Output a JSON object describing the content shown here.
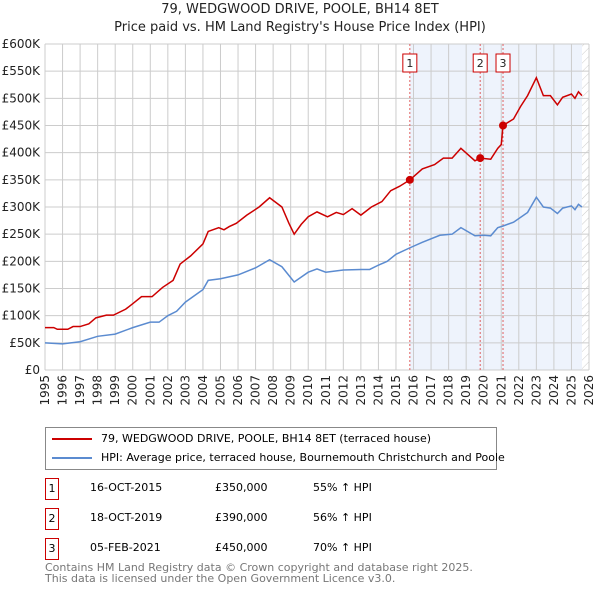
{
  "chart_data": {
    "type": "line",
    "title": "79, WEDGWOOD DRIVE, POOLE, BH14 8ET",
    "subtitle": "Price paid vs. HM Land Registry's House Price Index (HPI)",
    "xlim": [
      1995,
      2026
    ],
    "ylim": [
      0,
      600000
    ],
    "x_ticks": [
      "1995",
      "1996",
      "1997",
      "1998",
      "1999",
      "2000",
      "2001",
      "2002",
      "2003",
      "2004",
      "2005",
      "2006",
      "2007",
      "2008",
      "2009",
      "2010",
      "2011",
      "2012",
      "2013",
      "2014",
      "2015",
      "2016",
      "2017",
      "2018",
      "2019",
      "2020",
      "2021",
      "2022",
      "2023",
      "2024",
      "2025",
      "2026"
    ],
    "y_ticks": [
      "£0",
      "£50K",
      "£100K",
      "£150K",
      "£200K",
      "£250K",
      "£300K",
      "£350K",
      "£400K",
      "£450K",
      "£500K",
      "£550K",
      "£600K"
    ],
    "grid": true,
    "series": [
      {
        "name": "79, WEDGWOOD DRIVE, POOLE, BH14 8ET (terraced house)",
        "color": "#cc0000",
        "x": [
          1995,
          1995.5,
          1995.7,
          1996.3,
          1996.6,
          1997,
          1997.5,
          1997.9,
          1998.5,
          1998.9,
          1999.6,
          2000,
          2000.5,
          2001.1,
          2001.7,
          2002.3,
          2002.7,
          2003.3,
          2004,
          2004.3,
          2004.9,
          2005.2,
          2005.5,
          2005.9,
          2006.5,
          2007.2,
          2007.8,
          2008.5,
          2008.9,
          2009.2,
          2009.6,
          2010,
          2010.5,
          2011.1,
          2011.6,
          2012,
          2012.5,
          2013,
          2013.6,
          2014.2,
          2014.7,
          2015.2,
          2015.8,
          2016.5,
          2017.2,
          2017.7,
          2018.2,
          2018.7,
          2019.5,
          2019.8,
          2020.4,
          2020.8,
          2021,
          2021.1,
          2021.7,
          2022.1,
          2022.5,
          2023,
          2023.4,
          2023.8,
          2024.2,
          2024.5,
          2025,
          2025.2,
          2025.4,
          2025.6
        ],
        "y": [
          78,
          78,
          75,
          75,
          80,
          80,
          85,
          96,
          101,
          101,
          112,
          122,
          135,
          135,
          152,
          165,
          195,
          210,
          232,
          255,
          262,
          258,
          264,
          270,
          285,
          300,
          317,
          300,
          270,
          250,
          268,
          282,
          291,
          282,
          290,
          286,
          297,
          285,
          300,
          310,
          330,
          338,
          350,
          370,
          378,
          390,
          390,
          408,
          385,
          390,
          388,
          408,
          415,
          450,
          462,
          485,
          505,
          538,
          505,
          505,
          488,
          502,
          508,
          500,
          512,
          505
        ]
      },
      {
        "name": "HPI: Average price, terraced house, Bournemouth Christchurch and Poole",
        "color": "#5b8bd0",
        "x": [
          1995,
          1996,
          1997,
          1998,
          1999,
          2000,
          2001,
          2001.5,
          2002,
          2002.5,
          2003,
          2004,
          2004.3,
          2005,
          2006,
          2007,
          2007.8,
          2008.5,
          2009.2,
          2010,
          2010.5,
          2011,
          2012,
          2013,
          2013.5,
          2014,
          2014.5,
          2015,
          2015.8,
          2016.5,
          2017.5,
          2018.2,
          2018.7,
          2019.5,
          2020,
          2020.4,
          2020.8,
          2021.1,
          2021.7,
          2022.5,
          2023,
          2023.4,
          2023.8,
          2024.2,
          2024.5,
          2025,
          2025.2,
          2025.4,
          2025.6
        ],
        "y": [
          50,
          48,
          52,
          62,
          66,
          78,
          88,
          88,
          100,
          108,
          125,
          148,
          165,
          168,
          175,
          188,
          203,
          190,
          162,
          180,
          186,
          180,
          184,
          185,
          185,
          193,
          200,
          213,
          225,
          235,
          248,
          250,
          262,
          247,
          248,
          247,
          262,
          265,
          272,
          290,
          318,
          300,
          298,
          288,
          298,
          302,
          295,
          305,
          300
        ]
      }
    ],
    "y_unit": "thousands GBP",
    "sales": [
      {
        "n": "1",
        "x": 2015.79,
        "y": 350,
        "date": "16-OCT-2015",
        "price": "£350,000",
        "hpi": "55% ↑ HPI"
      },
      {
        "n": "2",
        "x": 2019.8,
        "y": 390,
        "date": "18-OCT-2019",
        "price": "£390,000",
        "hpi": "56% ↑ HPI"
      },
      {
        "n": "3",
        "x": 2021.1,
        "y": 450,
        "date": "05-FEB-2021",
        "price": "£450,000",
        "hpi": "70% ↑ HPI"
      }
    ],
    "shade_range": [
      2015.79,
      2025.6
    ],
    "legend_position": "below"
  },
  "footer": [
    "Contains HM Land Registry data © Crown copyright and database right 2025.",
    "This data is licensed under the Open Government Licence v3.0."
  ]
}
